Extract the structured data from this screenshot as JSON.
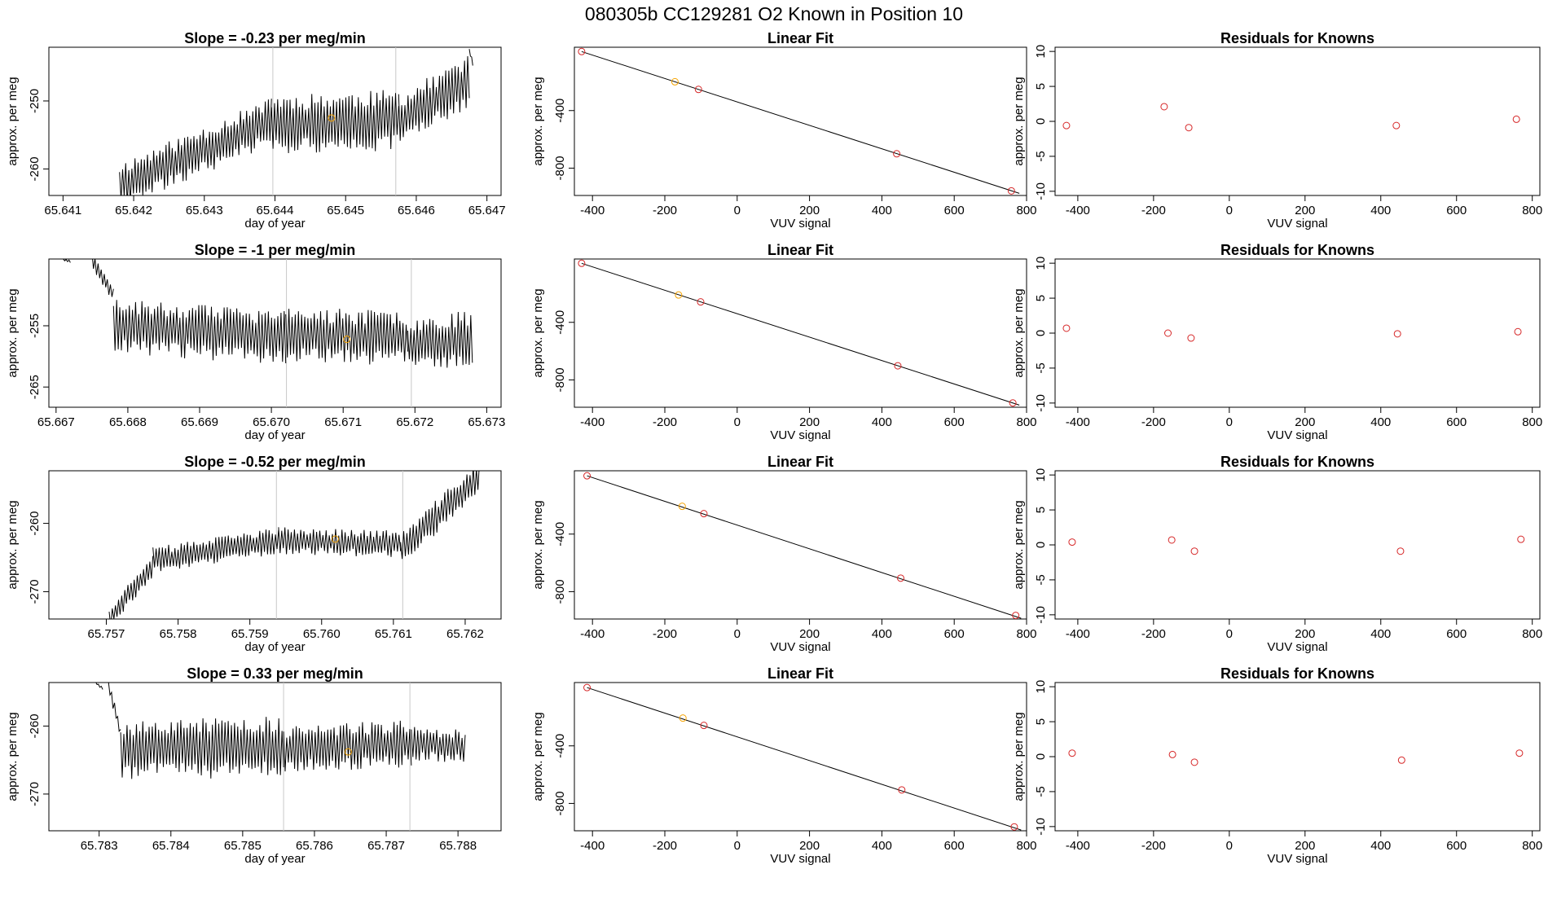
{
  "figure": {
    "title": "080305b      CC129281    O2 Known in Position  10"
  },
  "colors": {
    "trace": "#000000",
    "fit_line": "#000000",
    "marker": "#d62728",
    "highlight": "#f5a300",
    "vline": "#c8c8c8",
    "axis": "#000000"
  },
  "chart_data": [
    {
      "type": "line",
      "panel": "row1-time",
      "title": "Slope =  -0.23  per meg/min",
      "xlabel": "day of year",
      "ylabel": "approx. per meg",
      "xlim": [
        65.6408,
        65.6472
      ],
      "ylim": [
        -263.9,
        -242.1
      ],
      "xticks": [
        65.641,
        65.642,
        65.643,
        65.644,
        65.645,
        65.646,
        65.647
      ],
      "xtick_labels": [
        "65.641",
        "65.642",
        "65.643",
        "65.644",
        "65.645",
        "65.646",
        "65.647"
      ],
      "yticks": [
        -250,
        -260
      ],
      "ytick_labels": [
        "-250",
        "-260"
      ],
      "vlines": [
        65.64397,
        65.64571
      ],
      "marker": {
        "x": 65.6448,
        "y": -252.5
      },
      "trace_seed": 11,
      "segments": [
        {
          "start": 65.6418,
          "end": 65.64395,
          "base_start": -262.5,
          "base_end": -253.0,
          "amp": 3.5
        },
        {
          "start": 65.64395,
          "end": 65.64575,
          "base_start": -253.5,
          "base_end": -252.8,
          "amp": 4.5
        },
        {
          "start": 65.64575,
          "end": 65.64675,
          "base_start": -253.0,
          "base_end": -247.0,
          "amp": 4.0
        },
        {
          "start": 65.64675,
          "end": 65.6468,
          "base_start": -242.5,
          "base_end": -244.5,
          "amp": 0.3
        }
      ]
    },
    {
      "type": "scatter",
      "panel": "row1-fit",
      "title": "Linear Fit",
      "xlabel": "VUV signal",
      "ylabel": "approx. per meg",
      "xlim": [
        -450,
        800
      ],
      "ylim": [
        -990,
        40
      ],
      "xticks": [
        -400,
        -200,
        0,
        200,
        400,
        600,
        800
      ],
      "xtick_labels": [
        "-400",
        "-200",
        "0",
        "200",
        "400",
        "600",
        "800"
      ],
      "yticks": [
        -400,
        -800
      ],
      "ytick_labels": [
        "-400",
        "-800"
      ],
      "fit": {
        "x0": -430,
        "y0": 10,
        "x1": 780,
        "y1": -975
      },
      "points": [
        {
          "x": -430,
          "y": 10,
          "highlight": false
        },
        {
          "x": -172,
          "y": -200,
          "highlight": true
        },
        {
          "x": -107,
          "y": -253,
          "highlight": false
        },
        {
          "x": 441,
          "y": -700,
          "highlight": false
        },
        {
          "x": 758,
          "y": -958,
          "highlight": false
        }
      ]
    },
    {
      "type": "scatter",
      "panel": "row1-residuals",
      "title": "Residuals for Knowns",
      "xlabel": "VUV signal",
      "ylabel": "approx. per meg",
      "xlim": [
        -460,
        820
      ],
      "ylim": [
        -10.6,
        10.6
      ],
      "xticks": [
        -400,
        -200,
        0,
        200,
        400,
        600,
        800
      ],
      "xtick_labels": [
        "-400",
        "-200",
        "0",
        "200",
        "400",
        "600",
        "800"
      ],
      "yticks": [
        10,
        5,
        0,
        -5,
        -10
      ],
      "ytick_labels": [
        "10",
        "5",
        "0",
        "-5",
        "-10"
      ],
      "points": [
        {
          "x": -430,
          "y": -0.6
        },
        {
          "x": -172,
          "y": 2.1
        },
        {
          "x": -107,
          "y": -0.9
        },
        {
          "x": 441,
          "y": -0.6
        },
        {
          "x": 758,
          "y": 0.3
        }
      ]
    },
    {
      "type": "line",
      "panel": "row2-time",
      "title": "Slope =  -1  per meg/min",
      "xlabel": "day of year",
      "ylabel": "approx. per meg",
      "xlim": [
        65.6669,
        65.6732
      ],
      "ylim": [
        -268.3,
        -244.1
      ],
      "xticks": [
        65.667,
        65.668,
        65.669,
        65.67,
        65.671,
        65.672,
        65.673
      ],
      "xtick_labels": [
        "65.667",
        "65.668",
        "65.669",
        "65.670",
        "65.671",
        "65.672",
        "65.673"
      ],
      "yticks": [
        -255,
        -265
      ],
      "ytick_labels": [
        "-255",
        "-265"
      ],
      "vlines": [
        65.67021,
        65.67195
      ],
      "marker": {
        "x": 65.67105,
        "y": -257.2
      },
      "trace_seed": 23,
      "segments": [
        {
          "start": 65.6671,
          "end": 65.6672,
          "base_start": -244.2,
          "base_end": -244.5,
          "amp": 0.2
        },
        {
          "start": 65.6675,
          "end": 65.6678,
          "base_start": -244.0,
          "base_end": -250.0,
          "amp": 1.5
        },
        {
          "start": 65.6678,
          "end": 65.6702,
          "base_start": -255.0,
          "base_end": -257.0,
          "amp": 4.5
        },
        {
          "start": 65.6702,
          "end": 65.6719,
          "base_start": -256.5,
          "base_end": -257.0,
          "amp": 4.5
        },
        {
          "start": 65.6719,
          "end": 65.6728,
          "base_start": -258.0,
          "base_end": -257.0,
          "amp": 4.5
        }
      ]
    },
    {
      "type": "scatter",
      "panel": "row2-fit",
      "title": "Linear Fit",
      "xlabel": "VUV signal",
      "ylabel": "approx. per meg",
      "xlim": [
        -450,
        800
      ],
      "ylim": [
        -990,
        40
      ],
      "xticks": [
        -400,
        -200,
        0,
        200,
        400,
        600,
        800
      ],
      "xtick_labels": [
        "-400",
        "-200",
        "0",
        "200",
        "400",
        "600",
        "800"
      ],
      "yticks": [
        -400,
        -800
      ],
      "ytick_labels": [
        "-400",
        "-800"
      ],
      "fit": {
        "x0": -430,
        "y0": 10,
        "x1": 780,
        "y1": -975
      },
      "points": [
        {
          "x": -430,
          "y": 10,
          "highlight": false
        },
        {
          "x": -162,
          "y": -210,
          "highlight": true
        },
        {
          "x": -101,
          "y": -258,
          "highlight": false
        },
        {
          "x": 444,
          "y": -702,
          "highlight": false
        },
        {
          "x": 762,
          "y": -960,
          "highlight": false
        }
      ]
    },
    {
      "type": "scatter",
      "panel": "row2-residuals",
      "title": "Residuals for Knowns",
      "xlabel": "VUV signal",
      "ylabel": "approx. per meg",
      "xlim": [
        -460,
        820
      ],
      "ylim": [
        -10.6,
        10.6
      ],
      "xticks": [
        -400,
        -200,
        0,
        200,
        400,
        600,
        800
      ],
      "xtick_labels": [
        "-400",
        "-200",
        "0",
        "200",
        "400",
        "600",
        "800"
      ],
      "yticks": [
        10,
        5,
        0,
        -5,
        -10
      ],
      "ytick_labels": [
        "10",
        "5",
        "0",
        "-5",
        "-10"
      ],
      "points": [
        {
          "x": -430,
          "y": 0.7
        },
        {
          "x": -162,
          "y": 0.0
        },
        {
          "x": -101,
          "y": -0.7
        },
        {
          "x": 444,
          "y": -0.1
        },
        {
          "x": 762,
          "y": 0.2
        }
      ]
    },
    {
      "type": "line",
      "panel": "row3-time",
      "title": "Slope =  -0.52  per meg/min",
      "xlabel": "day of year",
      "ylabel": "approx. per meg",
      "xlim": [
        65.7562,
        65.7625
      ],
      "ylim": [
        -274.0,
        -252.3
      ],
      "xticks": [
        65.757,
        65.758,
        65.759,
        65.76,
        65.761,
        65.762
      ],
      "xtick_labels": [
        "65.757",
        "65.758",
        "65.759",
        "65.760",
        "65.761",
        "65.762"
      ],
      "yticks": [
        -260,
        -270
      ],
      "ytick_labels": [
        "-260",
        "-270"
      ],
      "vlines": [
        65.75937,
        65.76113
      ],
      "marker": {
        "x": 65.76019,
        "y": -262.3
      },
      "trace_seed": 37,
      "segments": [
        {
          "start": 65.75704,
          "end": 65.75765,
          "base_start": -274.0,
          "base_end": -266.0,
          "amp": 1.8
        },
        {
          "start": 65.75765,
          "end": 65.7594,
          "base_start": -265.5,
          "base_end": -262.5,
          "amp": 2.0
        },
        {
          "start": 65.7594,
          "end": 65.7611,
          "base_start": -262.5,
          "base_end": -263.0,
          "amp": 2.0
        },
        {
          "start": 65.7611,
          "end": 65.7622,
          "base_start": -264.0,
          "base_end": -253.0,
          "amp": 2.5
        }
      ]
    },
    {
      "type": "scatter",
      "panel": "row3-fit",
      "title": "Linear Fit",
      "xlabel": "VUV signal",
      "ylabel": "approx. per meg",
      "xlim": [
        -450,
        800
      ],
      "ylim": [
        -990,
        40
      ],
      "xticks": [
        -400,
        -200,
        0,
        200,
        400,
        600,
        800
      ],
      "xtick_labels": [
        "-400",
        "-200",
        "0",
        "200",
        "400",
        "600",
        "800"
      ],
      "yticks": [
        -400,
        -800
      ],
      "ytick_labels": [
        "-400",
        "-800"
      ],
      "fit": {
        "x0": -415,
        "y0": 5,
        "x1": 785,
        "y1": -985
      },
      "points": [
        {
          "x": -415,
          "y": 5,
          "highlight": false
        },
        {
          "x": -152,
          "y": -207,
          "highlight": true
        },
        {
          "x": -92,
          "y": -258,
          "highlight": false
        },
        {
          "x": 452,
          "y": -706,
          "highlight": false
        },
        {
          "x": 770,
          "y": -965,
          "highlight": false
        }
      ]
    },
    {
      "type": "scatter",
      "panel": "row3-residuals",
      "title": "Residuals for Knowns",
      "xlabel": "VUV signal",
      "ylabel": "approx. per meg",
      "xlim": [
        -460,
        820
      ],
      "ylim": [
        -10.6,
        10.6
      ],
      "xticks": [
        -400,
        -200,
        0,
        200,
        400,
        600,
        800
      ],
      "xtick_labels": [
        "-400",
        "-200",
        "0",
        "200",
        "400",
        "600",
        "800"
      ],
      "yticks": [
        10,
        5,
        0,
        -5,
        -10
      ],
      "ytick_labels": [
        "10",
        "5",
        "0",
        "-5",
        "-10"
      ],
      "points": [
        {
          "x": -415,
          "y": 0.4
        },
        {
          "x": -152,
          "y": 0.7
        },
        {
          "x": -92,
          "y": -0.9
        },
        {
          "x": 452,
          "y": -0.9
        },
        {
          "x": 770,
          "y": 0.8
        }
      ]
    },
    {
      "type": "line",
      "panel": "row4-time",
      "title": "Slope =  0.33  per meg/min",
      "xlabel": "day of year",
      "ylabel": "approx. per meg",
      "xlim": [
        65.7823,
        65.7886
      ],
      "ylim": [
        -275.4,
        -253.6
      ],
      "xticks": [
        65.783,
        65.784,
        65.785,
        65.786,
        65.787,
        65.788
      ],
      "xtick_labels": [
        "65.783",
        "65.784",
        "65.785",
        "65.786",
        "65.787",
        "65.788"
      ],
      "yticks": [
        -260,
        -270
      ],
      "ytick_labels": [
        "-260",
        "-270"
      ],
      "vlines": [
        65.78557,
        65.78733
      ],
      "marker": {
        "x": 65.78647,
        "y": -263.8
      },
      "trace_seed": 53,
      "segments": [
        {
          "start": 65.78295,
          "end": 65.78305,
          "base_start": -253.6,
          "base_end": -254.5,
          "amp": 0.2
        },
        {
          "start": 65.78313,
          "end": 65.7833,
          "base_start": -254.0,
          "base_end": -261.0,
          "amp": 1.0
        },
        {
          "start": 65.7833,
          "end": 65.78557,
          "base_start": -263.5,
          "base_end": -263.0,
          "amp": 4.5
        },
        {
          "start": 65.78557,
          "end": 65.78735,
          "base_start": -263.5,
          "base_end": -262.5,
          "amp": 3.5
        },
        {
          "start": 65.78735,
          "end": 65.7881,
          "base_start": -262.5,
          "base_end": -263.0,
          "amp": 2.5
        }
      ]
    },
    {
      "type": "scatter",
      "panel": "row4-fit",
      "title": "Linear Fit",
      "xlabel": "VUV signal",
      "ylabel": "approx. per meg",
      "xlim": [
        -450,
        800
      ],
      "ylim": [
        -990,
        40
      ],
      "xticks": [
        -400,
        -200,
        0,
        200,
        400,
        600,
        800
      ],
      "xtick_labels": [
        "-400",
        "-200",
        "0",
        "200",
        "400",
        "600",
        "800"
      ],
      "yticks": [
        -400,
        -800
      ],
      "ytick_labels": [
        "-400",
        "-800"
      ],
      "fit": {
        "x0": -415,
        "y0": 5,
        "x1": 785,
        "y1": -985
      },
      "points": [
        {
          "x": -415,
          "y": 5,
          "highlight": false
        },
        {
          "x": -150,
          "y": -207,
          "highlight": true
        },
        {
          "x": -92,
          "y": -258,
          "highlight": false
        },
        {
          "x": 455,
          "y": -706,
          "highlight": false
        },
        {
          "x": 766,
          "y": -963,
          "highlight": false
        }
      ]
    },
    {
      "type": "scatter",
      "panel": "row4-residuals",
      "title": "Residuals for Knowns",
      "xlabel": "VUV signal",
      "ylabel": "approx. per meg",
      "xlim": [
        -460,
        820
      ],
      "ylim": [
        -10.6,
        10.6
      ],
      "xticks": [
        -400,
        -200,
        0,
        200,
        400,
        600,
        800
      ],
      "xtick_labels": [
        "-400",
        "-200",
        "0",
        "200",
        "400",
        "600",
        "800"
      ],
      "yticks": [
        10,
        5,
        0,
        -5,
        -10
      ],
      "ytick_labels": [
        "10",
        "5",
        "0",
        "-5",
        "-10"
      ],
      "points": [
        {
          "x": -415,
          "y": 0.5
        },
        {
          "x": -150,
          "y": 0.3
        },
        {
          "x": -92,
          "y": -0.8
        },
        {
          "x": 455,
          "y": -0.5
        },
        {
          "x": 766,
          "y": 0.5
        }
      ]
    }
  ]
}
